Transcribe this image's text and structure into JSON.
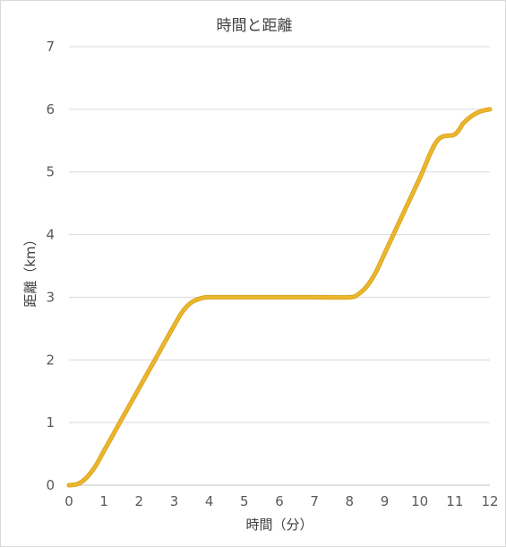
{
  "chart_data": {
    "type": "line",
    "title": "時間と距離",
    "xlabel": "時間（分）",
    "ylabel": "距離（km）",
    "xlim": [
      0,
      12
    ],
    "ylim": [
      0,
      7
    ],
    "x_ticks": [
      "0",
      "1",
      "2",
      "3",
      "4",
      "5",
      "6",
      "7",
      "8",
      "9",
      "10",
      "11",
      "12"
    ],
    "y_ticks": [
      "0",
      "1",
      "2",
      "3",
      "4",
      "5",
      "6",
      "7"
    ],
    "grid": "horizontal",
    "legend": "none",
    "colors": {
      "line": "#EBB62D",
      "line_edge": "#D4A017",
      "grid": "#D9D9D9",
      "axis": "#BFBFBF"
    },
    "series": [
      {
        "x": [
          0,
          0.25,
          0.5,
          0.75,
          1,
          1.5,
          2,
          2.5,
          3,
          3.25,
          3.5,
          3.75,
          4,
          5,
          6,
          7,
          8,
          8.25,
          8.5,
          8.75,
          9,
          9.5,
          10,
          10.5,
          11,
          11.25,
          11.5,
          11.75,
          12
        ],
        "y": [
          0,
          0.02,
          0.12,
          0.3,
          0.55,
          1.05,
          1.55,
          2.05,
          2.55,
          2.78,
          2.92,
          2.98,
          3,
          3,
          3,
          3,
          3,
          3.05,
          3.18,
          3.4,
          3.7,
          4.3,
          4.9,
          5.5,
          5.6,
          5.78,
          5.9,
          5.97,
          6
        ]
      }
    ]
  }
}
